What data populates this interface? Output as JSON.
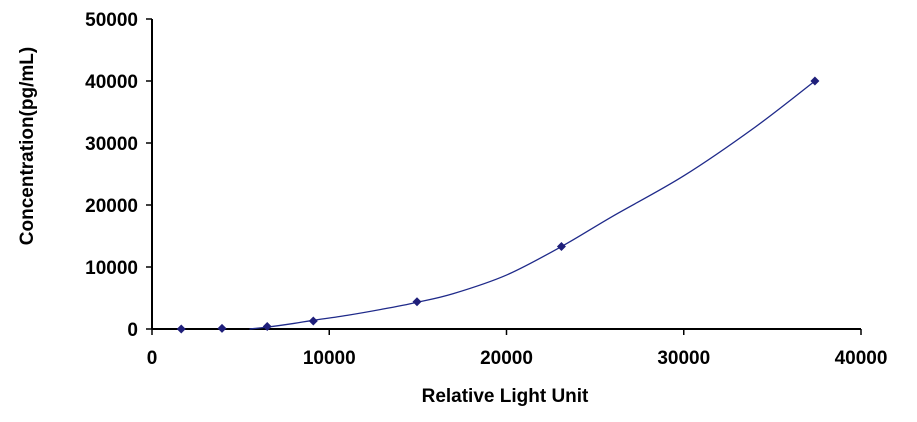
{
  "chart_data": {
    "type": "scatter",
    "title": "",
    "xlabel": "Relative Light Unit",
    "ylabel": "Concentration(pg/mL)",
    "xlim": [
      0,
      40000
    ],
    "ylim": [
      0,
      50000
    ],
    "x_ticks": [
      0,
      10000,
      20000,
      30000,
      40000
    ],
    "y_ticks": [
      0,
      10000,
      20000,
      30000,
      40000,
      50000
    ],
    "x_tick_labels": [
      "0",
      "10000",
      "20000",
      "30000",
      "40000"
    ],
    "y_tick_labels": [
      "0",
      "10000",
      "20000",
      "30000",
      "40000",
      "50000"
    ],
    "grid": false,
    "legend": "none",
    "series": [
      {
        "points": [
          {
            "x": 1650,
            "y": 0
          },
          {
            "x": 3950,
            "y": 100
          },
          {
            "x": 6500,
            "y": 400
          },
          {
            "x": 9100,
            "y": 1300
          },
          {
            "x": 14950,
            "y": 4400
          },
          {
            "x": 23100,
            "y": 13300
          },
          {
            "x": 37400,
            "y": 40000
          }
        ],
        "trendline": [
          {
            "x": 5500,
            "y": 0
          },
          {
            "x": 6500,
            "y": 300
          },
          {
            "x": 8000,
            "y": 900
          },
          {
            "x": 9100,
            "y": 1400
          },
          {
            "x": 11000,
            "y": 2200
          },
          {
            "x": 13000,
            "y": 3200
          },
          {
            "x": 14950,
            "y": 4300
          },
          {
            "x": 17000,
            "y": 5700
          },
          {
            "x": 20000,
            "y": 8700
          },
          {
            "x": 23100,
            "y": 13300
          },
          {
            "x": 26000,
            "y": 18200
          },
          {
            "x": 30000,
            "y": 24700
          },
          {
            "x": 34000,
            "y": 32500
          },
          {
            "x": 37400,
            "y": 40000
          }
        ]
      }
    ],
    "colors": {
      "marker": "#1f1f7a",
      "line": "#1f2a8a",
      "axis": "#000000"
    }
  }
}
